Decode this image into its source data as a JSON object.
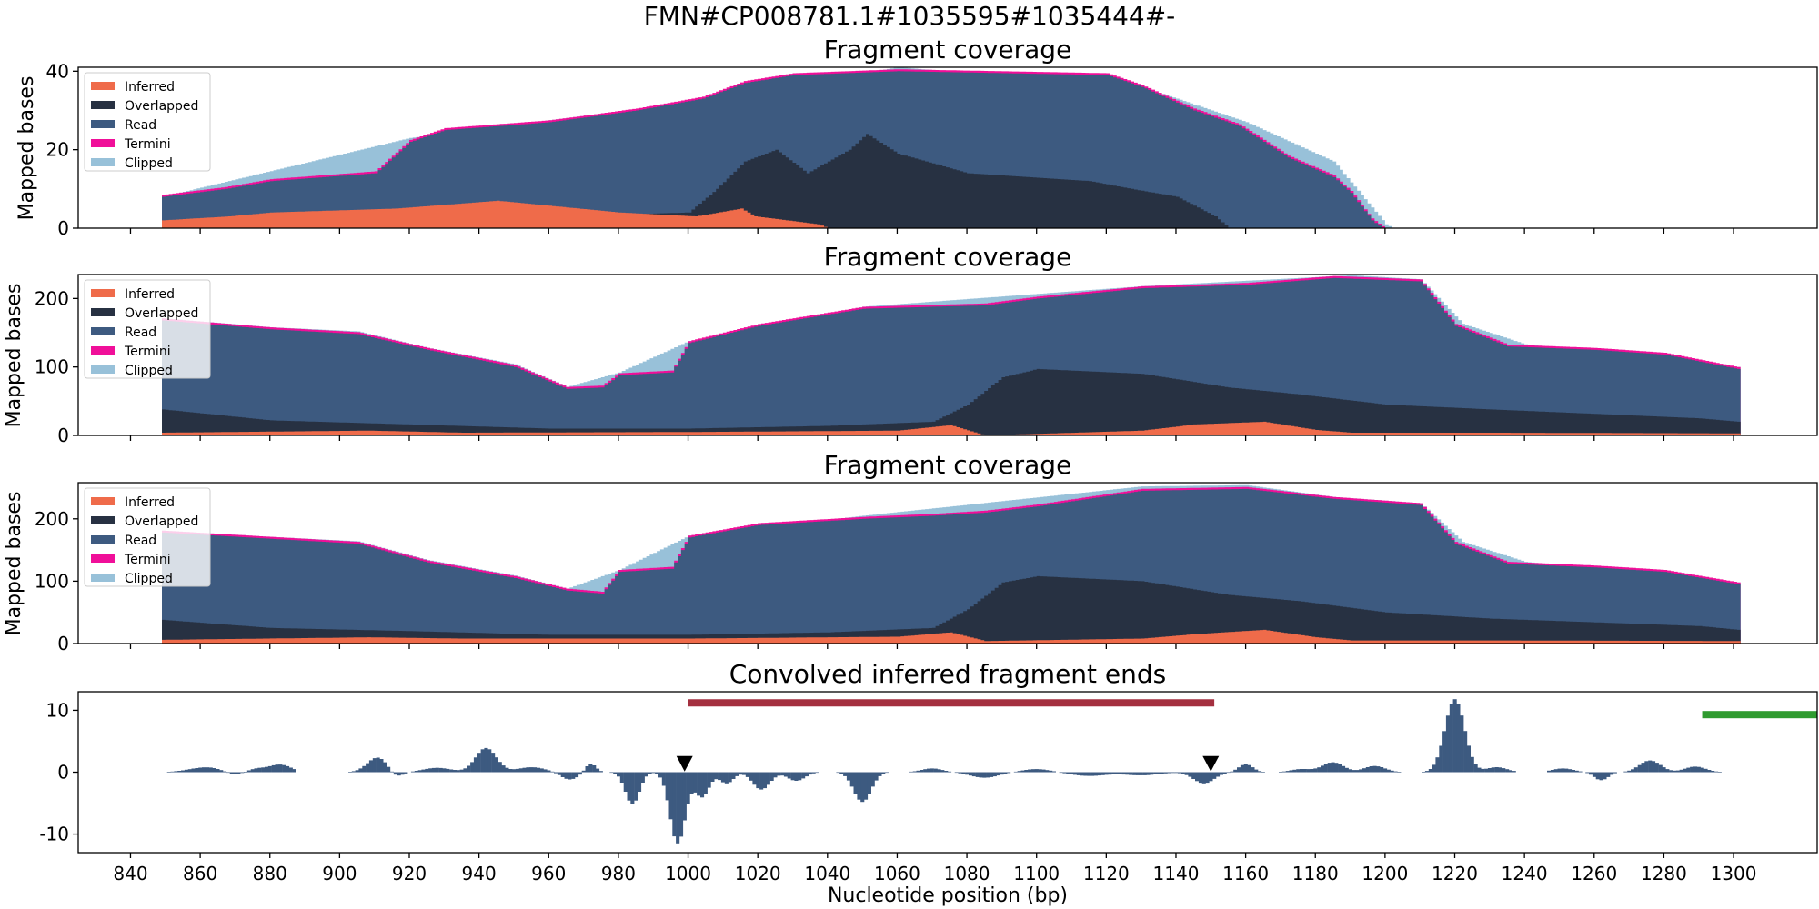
{
  "suptitle": "FMN#CP008781.1#1035595#1035444#-",
  "colors": {
    "inferred": "#ef6b4a",
    "overlapped": "#273142",
    "read": "#3d5a80",
    "termini": "#f00f99",
    "clipped": "#98c1d9",
    "red_bar": "#a4303f",
    "green_bar": "#2f9b2f",
    "marker": "#000000"
  },
  "chart_data": [
    {
      "type": "area",
      "title": "Fragment coverage",
      "ylabel": "Mapped bases",
      "ylim": [
        0,
        41
      ],
      "yticks": [
        0,
        20,
        40
      ],
      "legend": [
        "Inferred",
        "Overlapped",
        "Read",
        "Termini",
        "Clipped"
      ],
      "legend_position": "top-left",
      "series": [
        {
          "name": "Inferred",
          "points": [
            [
              849,
              2
            ],
            [
              868,
              3
            ],
            [
              880,
              4
            ],
            [
              916,
              5
            ],
            [
              945,
              7
            ],
            [
              980,
              4
            ],
            [
              1002,
              3
            ],
            [
              1015,
              5
            ],
            [
              1019,
              3
            ],
            [
              1037,
              1
            ],
            [
              1040,
              0
            ]
          ]
        },
        {
          "name": "Overlapped",
          "points": [
            [
              849,
              0
            ],
            [
              1000,
              4
            ],
            [
              1008,
              10
            ],
            [
              1016,
              17
            ],
            [
              1025,
              20
            ],
            [
              1034,
              14
            ],
            [
              1046,
              20
            ],
            [
              1051,
              24
            ],
            [
              1060,
              19
            ],
            [
              1072,
              16
            ],
            [
              1080,
              14
            ],
            [
              1115,
              12
            ],
            [
              1127,
              10
            ],
            [
              1140,
              8
            ],
            [
              1151,
              3
            ],
            [
              1155,
              0
            ]
          ]
        },
        {
          "name": "Read",
          "points": [
            [
              849,
              8
            ],
            [
              867,
              10
            ],
            [
              880,
              12
            ],
            [
              910,
              14
            ],
            [
              920,
              22
            ],
            [
              930,
              25
            ],
            [
              960,
              27
            ],
            [
              985,
              30
            ],
            [
              1004,
              33
            ],
            [
              1016,
              37
            ],
            [
              1030,
              39
            ],
            [
              1060,
              40
            ],
            [
              1120,
              39
            ],
            [
              1130,
              36
            ],
            [
              1145,
              30
            ],
            [
              1158,
              26
            ],
            [
              1172,
              18
            ],
            [
              1185,
              13
            ],
            [
              1190,
              9
            ],
            [
              1196,
              2
            ],
            [
              1199,
              0
            ]
          ]
        },
        {
          "name": "Clipped",
          "points": [
            [
              849,
              8
            ],
            [
              920,
              23
            ],
            [
              1000,
              32
            ],
            [
              1060,
              41
            ],
            [
              1130,
              36
            ],
            [
              1160,
              27
            ],
            [
              1185,
              17
            ],
            [
              1200,
              1
            ],
            [
              1202,
              0
            ]
          ]
        }
      ]
    },
    {
      "type": "area",
      "title": "Fragment coverage",
      "ylabel": "Mapped bases",
      "ylim": [
        0,
        235
      ],
      "yticks": [
        0,
        100,
        200
      ],
      "legend": [
        "Inferred",
        "Overlapped",
        "Read",
        "Termini",
        "Clipped"
      ],
      "legend_position": "top-left",
      "series": [
        {
          "name": "Inferred",
          "points": [
            [
              849,
              4
            ],
            [
              908,
              7
            ],
            [
              935,
              4
            ],
            [
              1000,
              5
            ],
            [
              1060,
              7
            ],
            [
              1075,
              15
            ],
            [
              1085,
              0
            ],
            [
              1130,
              7
            ],
            [
              1145,
              16
            ],
            [
              1165,
              20
            ],
            [
              1180,
              8
            ],
            [
              1190,
              4
            ],
            [
              1230,
              4
            ],
            [
              1301,
              3
            ]
          ]
        },
        {
          "name": "Overlapped",
          "points": [
            [
              849,
              38
            ],
            [
              880,
              22
            ],
            [
              920,
              16
            ],
            [
              960,
              10
            ],
            [
              1000,
              10
            ],
            [
              1040,
              14
            ],
            [
              1070,
              20
            ],
            [
              1080,
              45
            ],
            [
              1090,
              85
            ],
            [
              1100,
              97
            ],
            [
              1130,
              90
            ],
            [
              1155,
              70
            ],
            [
              1175,
              60
            ],
            [
              1200,
              45
            ],
            [
              1230,
              38
            ],
            [
              1290,
              25
            ],
            [
              1301,
              20
            ]
          ]
        },
        {
          "name": "Read",
          "points": [
            [
              849,
              168
            ],
            [
              880,
              155
            ],
            [
              905,
              148
            ],
            [
              925,
              125
            ],
            [
              950,
              100
            ],
            [
              965,
              68
            ],
            [
              975,
              70
            ],
            [
              980,
              88
            ],
            [
              995,
              92
            ],
            [
              1000,
              135
            ],
            [
              1020,
              160
            ],
            [
              1050,
              185
            ],
            [
              1070,
              188
            ],
            [
              1085,
              190
            ],
            [
              1100,
              200
            ],
            [
              1130,
              215
            ],
            [
              1160,
              220
            ],
            [
              1185,
              230
            ],
            [
              1210,
              225
            ],
            [
              1220,
              160
            ],
            [
              1235,
              130
            ],
            [
              1260,
              125
            ],
            [
              1280,
              118
            ],
            [
              1301,
              97
            ]
          ]
        },
        {
          "name": "Clipped",
          "points": [
            [
              849,
              171
            ],
            [
              880,
              158
            ],
            [
              905,
              152
            ],
            [
              925,
              128
            ],
            [
              950,
              104
            ],
            [
              965,
              71
            ],
            [
              980,
              92
            ],
            [
              1000,
              138
            ],
            [
              1050,
              188
            ],
            [
              1130,
              218
            ],
            [
              1190,
              234
            ],
            [
              1210,
              228
            ],
            [
              1222,
              163
            ],
            [
              1240,
              133
            ],
            [
              1301,
              100
            ]
          ]
        }
      ]
    },
    {
      "type": "area",
      "title": "Fragment coverage",
      "ylabel": "Mapped bases",
      "ylim": [
        0,
        258
      ],
      "yticks": [
        0,
        100,
        200
      ],
      "legend": [
        "Inferred",
        "Overlapped",
        "Read",
        "Termini",
        "Clipped"
      ],
      "legend_position": "top-left",
      "series": [
        {
          "name": "Inferred",
          "points": [
            [
              849,
              6
            ],
            [
              908,
              10
            ],
            [
              935,
              8
            ],
            [
              1000,
              8
            ],
            [
              1060,
              11
            ],
            [
              1075,
              18
            ],
            [
              1085,
              4
            ],
            [
              1130,
              8
            ],
            [
              1145,
              15
            ],
            [
              1165,
              22
            ],
            [
              1180,
              10
            ],
            [
              1190,
              5
            ],
            [
              1230,
              5
            ],
            [
              1301,
              4
            ]
          ]
        },
        {
          "name": "Overlapped",
          "points": [
            [
              849,
              38
            ],
            [
              880,
              25
            ],
            [
              920,
              20
            ],
            [
              960,
              14
            ],
            [
              1000,
              14
            ],
            [
              1040,
              18
            ],
            [
              1070,
              25
            ],
            [
              1080,
              55
            ],
            [
              1090,
              98
            ],
            [
              1100,
              108
            ],
            [
              1130,
              100
            ],
            [
              1155,
              78
            ],
            [
              1175,
              68
            ],
            [
              1200,
              50
            ],
            [
              1230,
              40
            ],
            [
              1290,
              28
            ],
            [
              1301,
              22
            ]
          ]
        },
        {
          "name": "Read",
          "points": [
            [
              849,
              178
            ],
            [
              880,
              168
            ],
            [
              905,
              160
            ],
            [
              925,
              130
            ],
            [
              950,
              105
            ],
            [
              965,
              85
            ],
            [
              975,
              80
            ],
            [
              980,
              115
            ],
            [
              995,
              120
            ],
            [
              1000,
              170
            ],
            [
              1020,
              190
            ],
            [
              1050,
              200
            ],
            [
              1070,
              205
            ],
            [
              1085,
              210
            ],
            [
              1100,
              220
            ],
            [
              1130,
              245
            ],
            [
              1160,
              248
            ],
            [
              1185,
              232
            ],
            [
              1210,
              222
            ],
            [
              1220,
              160
            ],
            [
              1235,
              128
            ],
            [
              1260,
              122
            ],
            [
              1280,
              115
            ],
            [
              1301,
              95
            ]
          ]
        },
        {
          "name": "Clipped",
          "points": [
            [
              849,
              181
            ],
            [
              880,
              171
            ],
            [
              905,
              164
            ],
            [
              925,
              134
            ],
            [
              950,
              109
            ],
            [
              965,
              88
            ],
            [
              980,
              118
            ],
            [
              1000,
              173
            ],
            [
              1050,
              205
            ],
            [
              1130,
              252
            ],
            [
              1160,
              254
            ],
            [
              1185,
              235
            ],
            [
              1210,
              225
            ],
            [
              1222,
              163
            ],
            [
              1240,
              131
            ],
            [
              1301,
              98
            ]
          ]
        }
      ]
    },
    {
      "type": "bar",
      "title": "Convolved inferred fragment ends",
      "xlabel": "Nucleotide position (bp)",
      "ylim": [
        -13,
        13
      ],
      "yticks": [
        -10,
        0,
        10
      ],
      "xlim": [
        825,
        1324
      ],
      "xticks": [
        840,
        860,
        880,
        900,
        920,
        940,
        960,
        980,
        1000,
        1020,
        1040,
        1060,
        1080,
        1100,
        1120,
        1140,
        1160,
        1180,
        1200,
        1220,
        1240,
        1260,
        1280,
        1300
      ],
      "peaks": [
        {
          "x": 862,
          "h": 0.8,
          "w": 5
        },
        {
          "x": 870,
          "h": -0.6,
          "w": 3
        },
        {
          "x": 876,
          "h": 0.6,
          "w": 3
        },
        {
          "x": 883,
          "h": 1.2,
          "w": 3
        },
        {
          "x": 911,
          "h": 2.4,
          "w": 3
        },
        {
          "x": 916,
          "h": -1.0,
          "w": 2
        },
        {
          "x": 928,
          "h": 0.7,
          "w": 4
        },
        {
          "x": 942,
          "h": 3.9,
          "w": 3
        },
        {
          "x": 955,
          "h": 0.8,
          "w": 4
        },
        {
          "x": 966,
          "h": -1.2,
          "w": 2.5
        },
        {
          "x": 972,
          "h": 1.4,
          "w": 1.5
        },
        {
          "x": 984,
          "h": -5.2,
          "w": 2
        },
        {
          "x": 997,
          "h": -11.5,
          "w": 2.2
        },
        {
          "x": 1004,
          "h": -4.0,
          "w": 2
        },
        {
          "x": 1011,
          "h": -1.8,
          "w": 2
        },
        {
          "x": 1021,
          "h": -2.8,
          "w": 2.5
        },
        {
          "x": 1031,
          "h": -1.4,
          "w": 2.5
        },
        {
          "x": 1050,
          "h": -4.8,
          "w": 2.5
        },
        {
          "x": 1070,
          "h": 0.6,
          "w": 3
        },
        {
          "x": 1085,
          "h": -0.9,
          "w": 4
        },
        {
          "x": 1100,
          "h": 0.5,
          "w": 4
        },
        {
          "x": 1115,
          "h": -0.6,
          "w": 5
        },
        {
          "x": 1130,
          "h": -0.5,
          "w": 5
        },
        {
          "x": 1148,
          "h": -1.8,
          "w": 3
        },
        {
          "x": 1160,
          "h": 1.3,
          "w": 2
        },
        {
          "x": 1176,
          "h": 0.5,
          "w": 3
        },
        {
          "x": 1185,
          "h": 1.6,
          "w": 3
        },
        {
          "x": 1197,
          "h": 1.0,
          "w": 3
        },
        {
          "x": 1220,
          "h": 11.8,
          "w": 2.8
        },
        {
          "x": 1232,
          "h": 0.8,
          "w": 3
        },
        {
          "x": 1251,
          "h": 0.6,
          "w": 3
        },
        {
          "x": 1262,
          "h": -1.3,
          "w": 2
        },
        {
          "x": 1276,
          "h": 1.9,
          "w": 3
        },
        {
          "x": 1289,
          "h": 0.9,
          "w": 3
        }
      ],
      "gaps": [
        [
          888,
          900
        ],
        [
          1238,
          1246
        ]
      ],
      "bar_range": [
        849,
        1301
      ],
      "red_segment": {
        "x": [
          1000,
          1151
        ],
        "y": 11.2
      },
      "green_segment": {
        "x": [
          1291,
          1324
        ],
        "y": 9.3
      },
      "markers": [
        {
          "x": 999,
          "y": 1.0
        },
        {
          "x": 1150,
          "y": 1.0
        }
      ]
    }
  ]
}
